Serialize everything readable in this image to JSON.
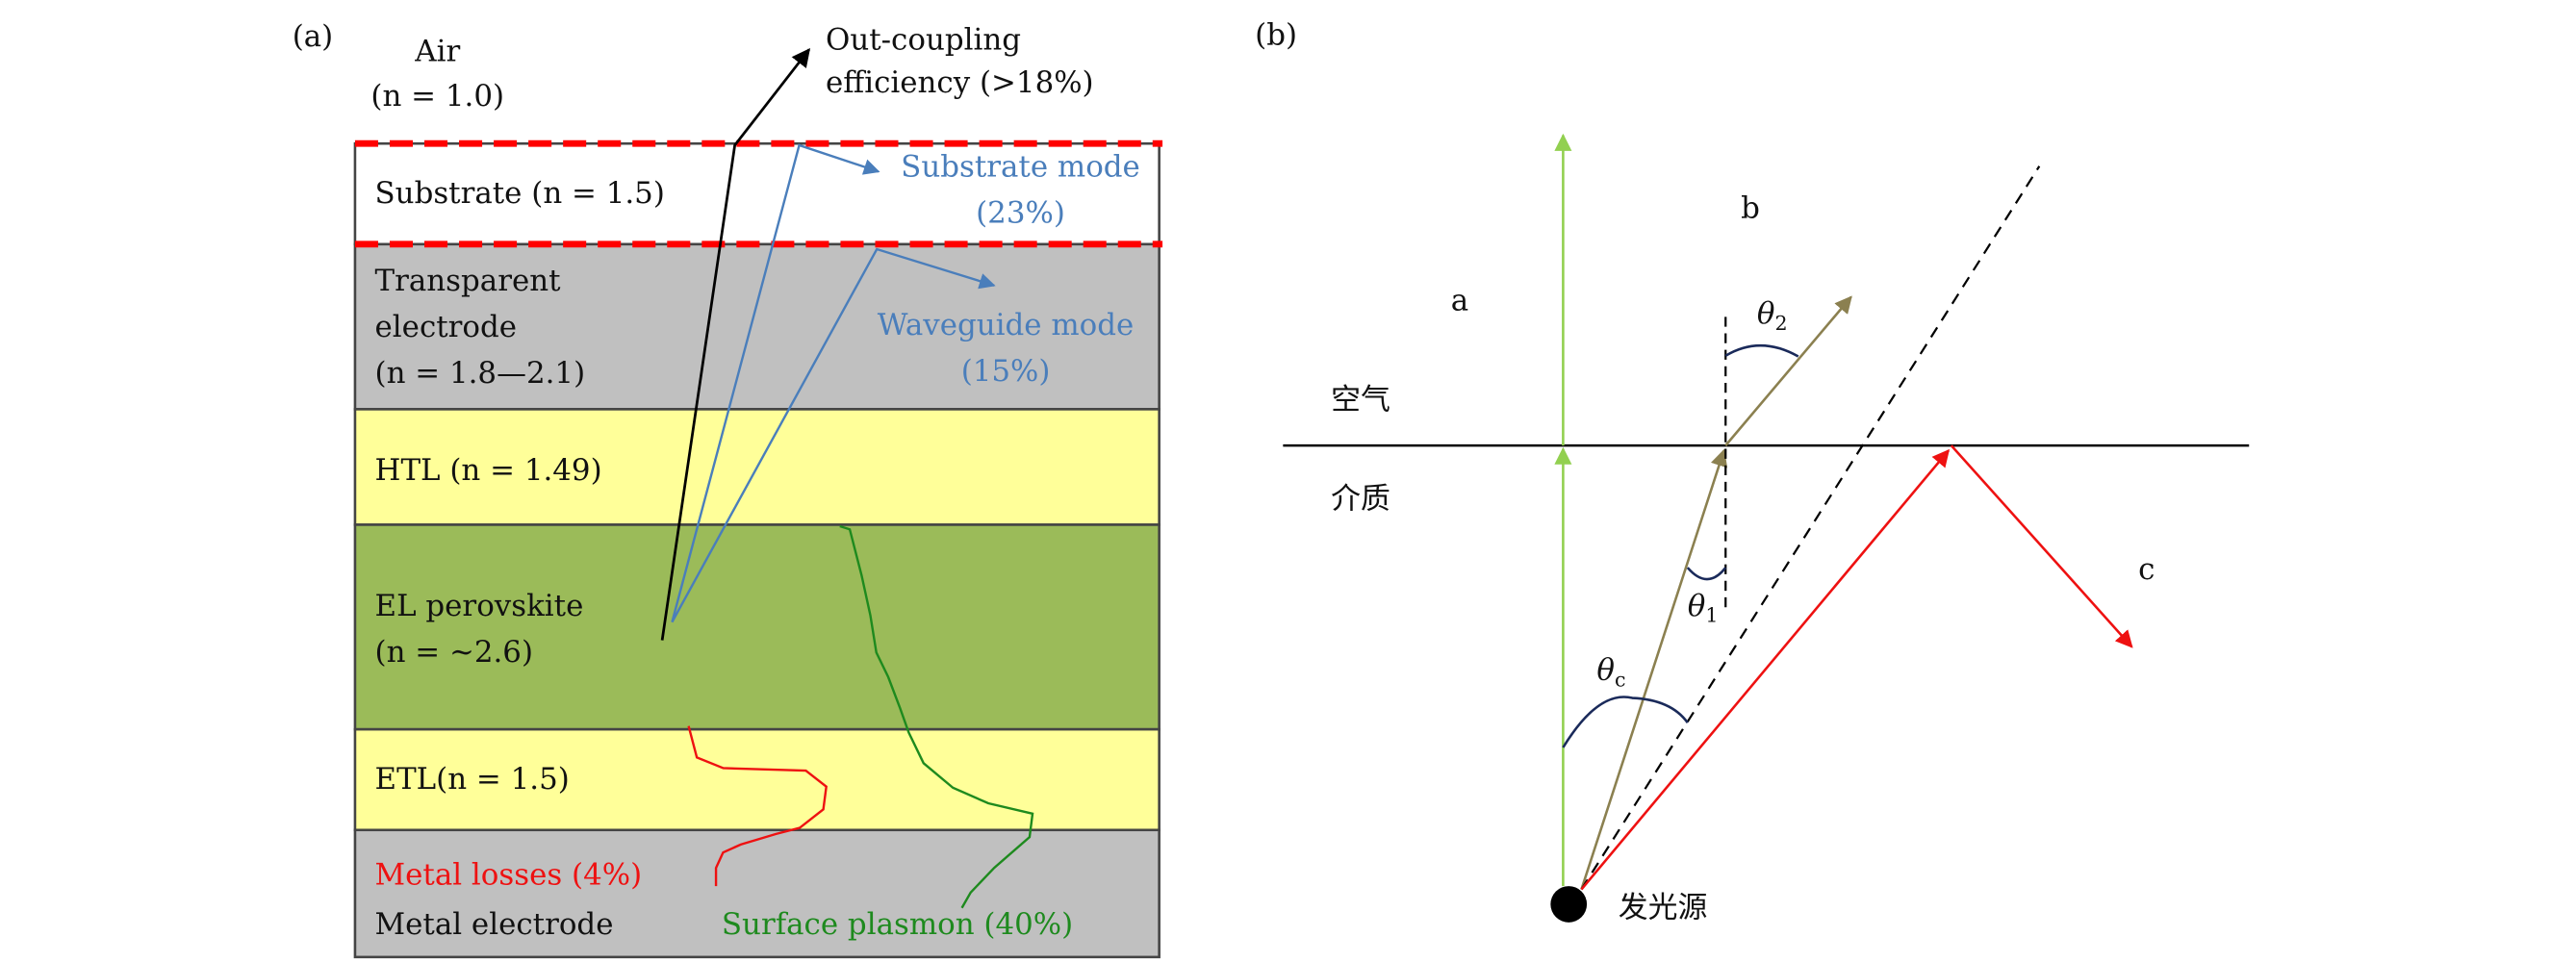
{
  "panel_a": {
    "label": "(a)",
    "air": "Air",
    "air_n": "(n = 1.0)",
    "outcoupling_line1": "Out-coupling",
    "outcoupling_line2": "efficiency (>18%)",
    "substrate": "Substrate (n = 1.5)",
    "substrate_mode": "Substrate mode",
    "substrate_mode_pct": "(23%)",
    "te_line1": "Transparent",
    "te_line2": "electrode",
    "te_line3": "(n = 1.8—2.1)",
    "waveguide_mode": "Waveguide mode",
    "waveguide_mode_pct": "(15%)",
    "htl": "HTL (n = 1.49)",
    "el_line1": "EL perovskite",
    "el_line2": "(n = ~2.6)",
    "etl": "ETL(n = 1.5)",
    "metal_losses": "Metal losses (4%)",
    "metal_electrode": "Metal electrode",
    "surface_plasmon": "Surface plasmon (40%)",
    "colors": {
      "substrate": "#ffffff",
      "transparent_electrode": "#c0c0c0",
      "htl": "#ffff99",
      "el": "#9bbb59",
      "etl": "#ffff99",
      "metal": "#c0c0c0",
      "interface_dash": "#ff0000",
      "blue": "#4a7ebb",
      "green": "#1e8a1e",
      "red": "#ee1111"
    }
  },
  "panel_b": {
    "label": "(b)",
    "ray_a": "a",
    "ray_b": "b",
    "ray_c": "c",
    "air": "空气",
    "medium": "介质",
    "source": "发光源",
    "theta": "θ",
    "sub_2": "2",
    "sub_1": "1",
    "sub_c": "c",
    "colors": {
      "ray_a": "#92d050",
      "ray_b": "#8b8050",
      "ray_c": "#ee1111",
      "arc": "#1a2a5a"
    }
  }
}
